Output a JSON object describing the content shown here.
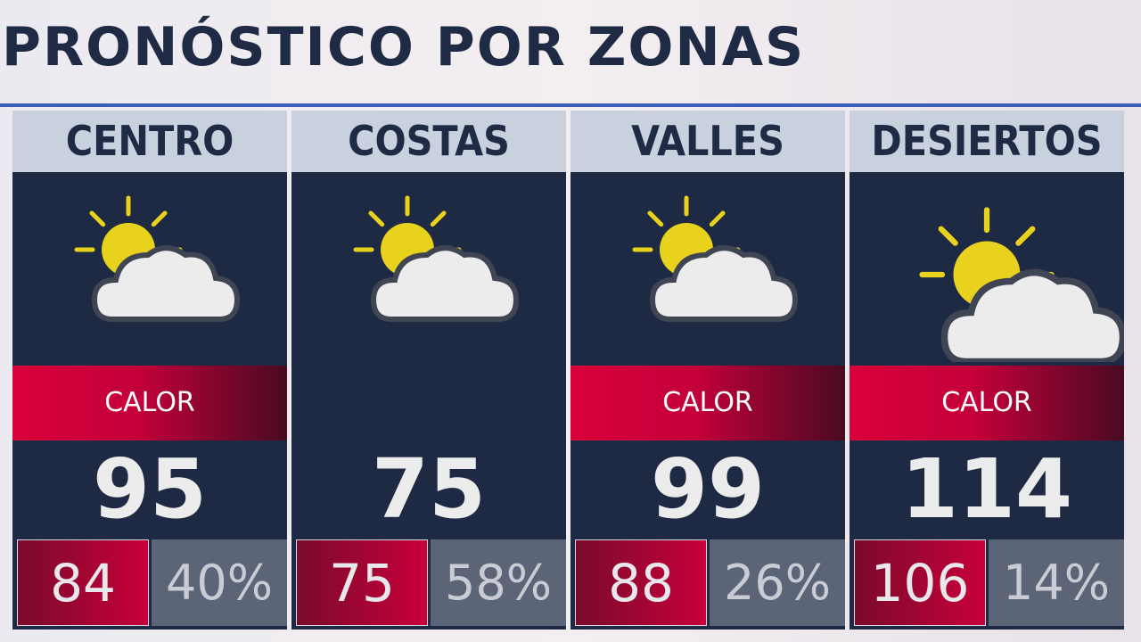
{
  "header": {
    "title": "PRONÓSTICO POR ZONAS"
  },
  "zones": [
    {
      "name": "CENTRO",
      "alert": "CALOR",
      "high": "95",
      "low": "84",
      "humidity": "40%"
    },
    {
      "name": "COSTAS",
      "high": "75",
      "low": "75",
      "humidity": "58%"
    },
    {
      "name": "VALLES",
      "alert": "CALOR",
      "high": "99",
      "low": "88",
      "humidity": "26%"
    },
    {
      "name": "DESIERTOS",
      "alert": "CALOR",
      "high": "114",
      "low": "106",
      "humidity": "14%"
    }
  ]
}
